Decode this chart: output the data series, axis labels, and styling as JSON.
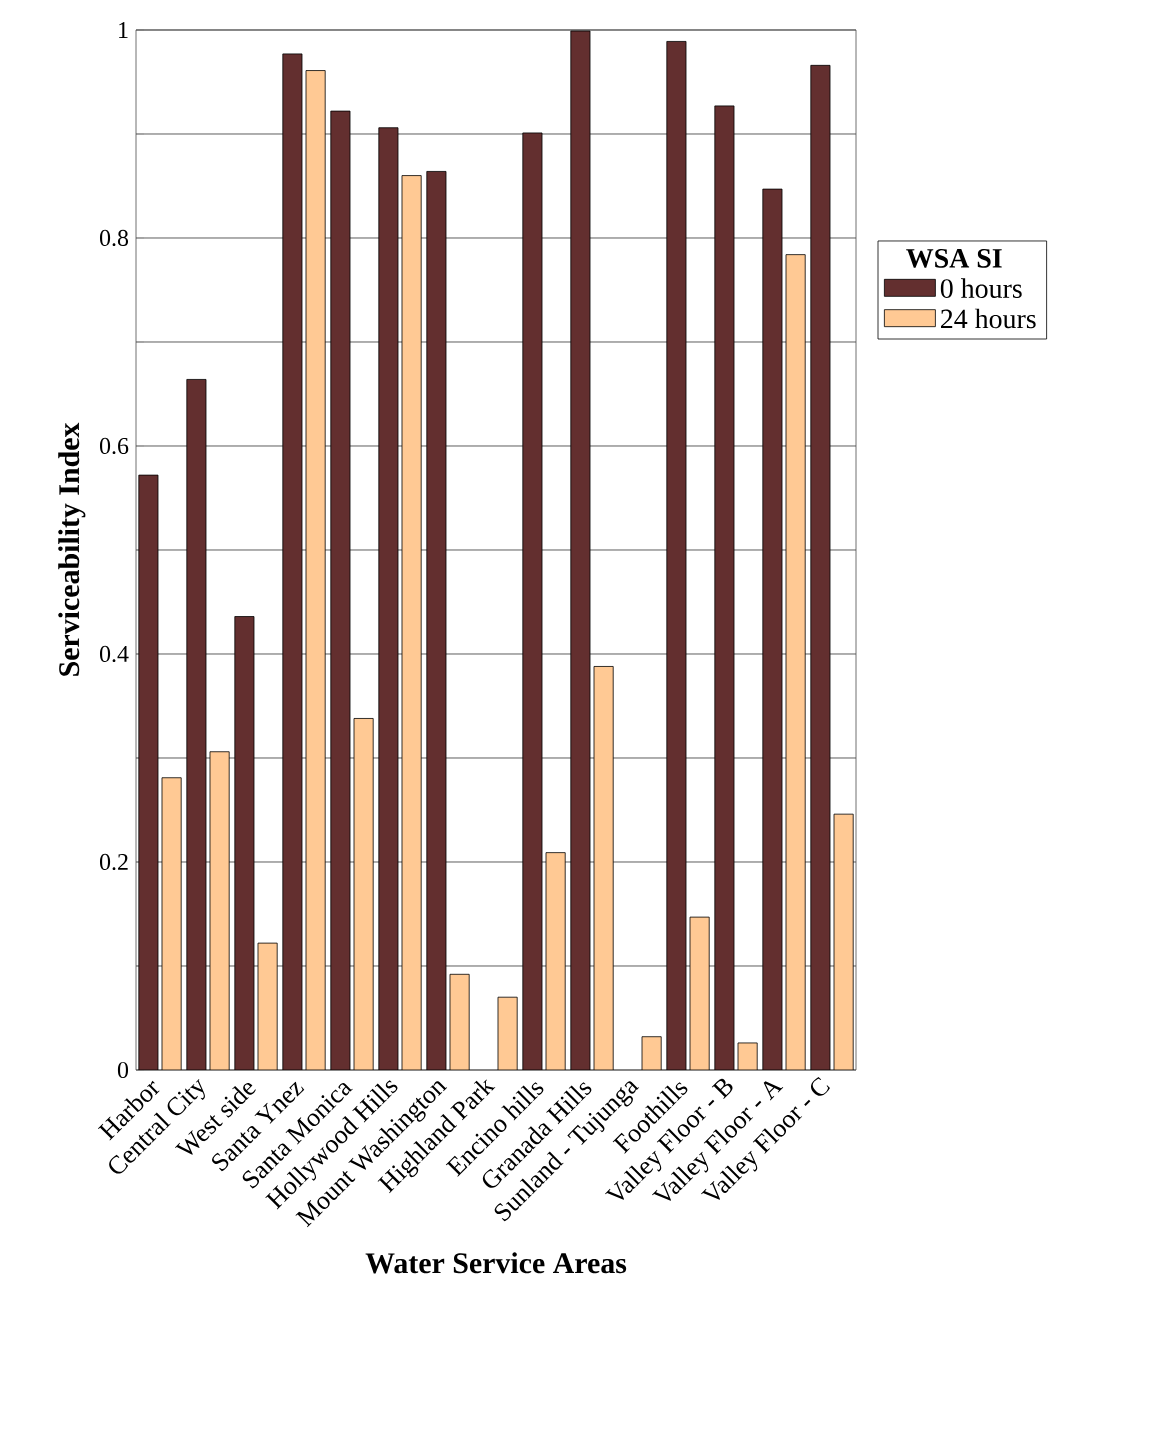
{
  "chart_data": {
    "type": "bar",
    "xlabel": "Water Service Areas",
    "ylabel": "Serviceability Index",
    "legend_title": "WSA SI",
    "categories": [
      "Harbor",
      "Central City",
      "West side",
      "Santa Ynez",
      "Santa Monica",
      "Hollywood Hills",
      "Mount Washington",
      "Highland Park",
      "Encino hills",
      "Granada Hills",
      "Sunland - Tujunga",
      "Foothills",
      "Valley Floor - B",
      "Valley Floor - A",
      "Valley Floor - C"
    ],
    "series": [
      {
        "name": "0 hours",
        "color": "#632f2f",
        "values": [
          0.572,
          0.664,
          0.436,
          0.977,
          0.922,
          0.906,
          0.864,
          null,
          0.901,
          0.999,
          null,
          0.989,
          0.927,
          0.847,
          0.966
        ]
      },
      {
        "name": "24 hours",
        "color": "#ffc994",
        "values": [
          0.281,
          0.306,
          0.122,
          0.961,
          0.338,
          0.86,
          0.092,
          0.07,
          0.209,
          0.388,
          0.032,
          0.147,
          0.026,
          0.784,
          0.246
        ]
      }
    ],
    "ylim": [
      0,
      1
    ],
    "yticks": [
      0,
      {
        "value": 0.1,
        "label": null
      },
      0.2,
      {
        "value": 0.3,
        "label": null
      },
      0.4,
      {
        "value": 0.5,
        "label": null
      },
      0.6,
      {
        "value": 0.7,
        "label": null
      },
      0.8,
      {
        "value": 0.9,
        "label": null
      },
      1
    ],
    "grid": "y",
    "legend": "right"
  }
}
